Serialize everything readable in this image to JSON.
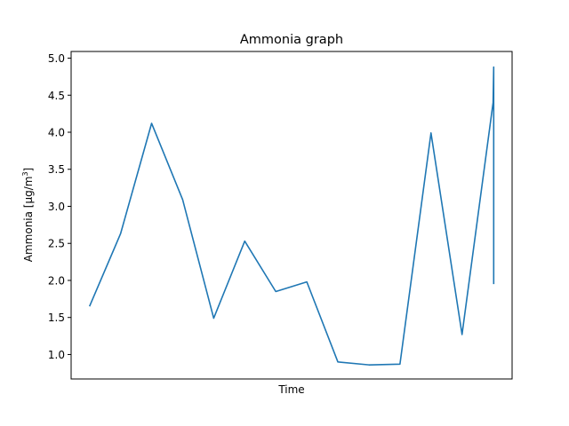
{
  "chart_data": {
    "type": "line",
    "title": "Ammonia graph",
    "xlabel": "Time",
    "ylabel_main": "Ammonia [µg/m",
    "ylabel_sup": "3",
    "ylabel_end": "]",
    "ylim": [
      0.67,
      5.09
    ],
    "yticks": [
      "1.0",
      "1.5",
      "2.0",
      "2.5",
      "3.0",
      "3.5",
      "4.0",
      "4.5",
      "5.0"
    ],
    "grid": false,
    "line_color": "#1f77b4",
    "series": [
      {
        "x": [
          0,
          1,
          2,
          3,
          4,
          5,
          6,
          7,
          8,
          9,
          10,
          11,
          12,
          13,
          13.02,
          13.02
        ],
        "values": [
          1.65,
          2.63,
          4.12,
          3.09,
          1.49,
          2.53,
          1.85,
          1.98,
          0.9,
          0.86,
          0.87,
          3.99,
          1.27,
          4.4,
          4.88,
          1.95
        ]
      }
    ]
  }
}
